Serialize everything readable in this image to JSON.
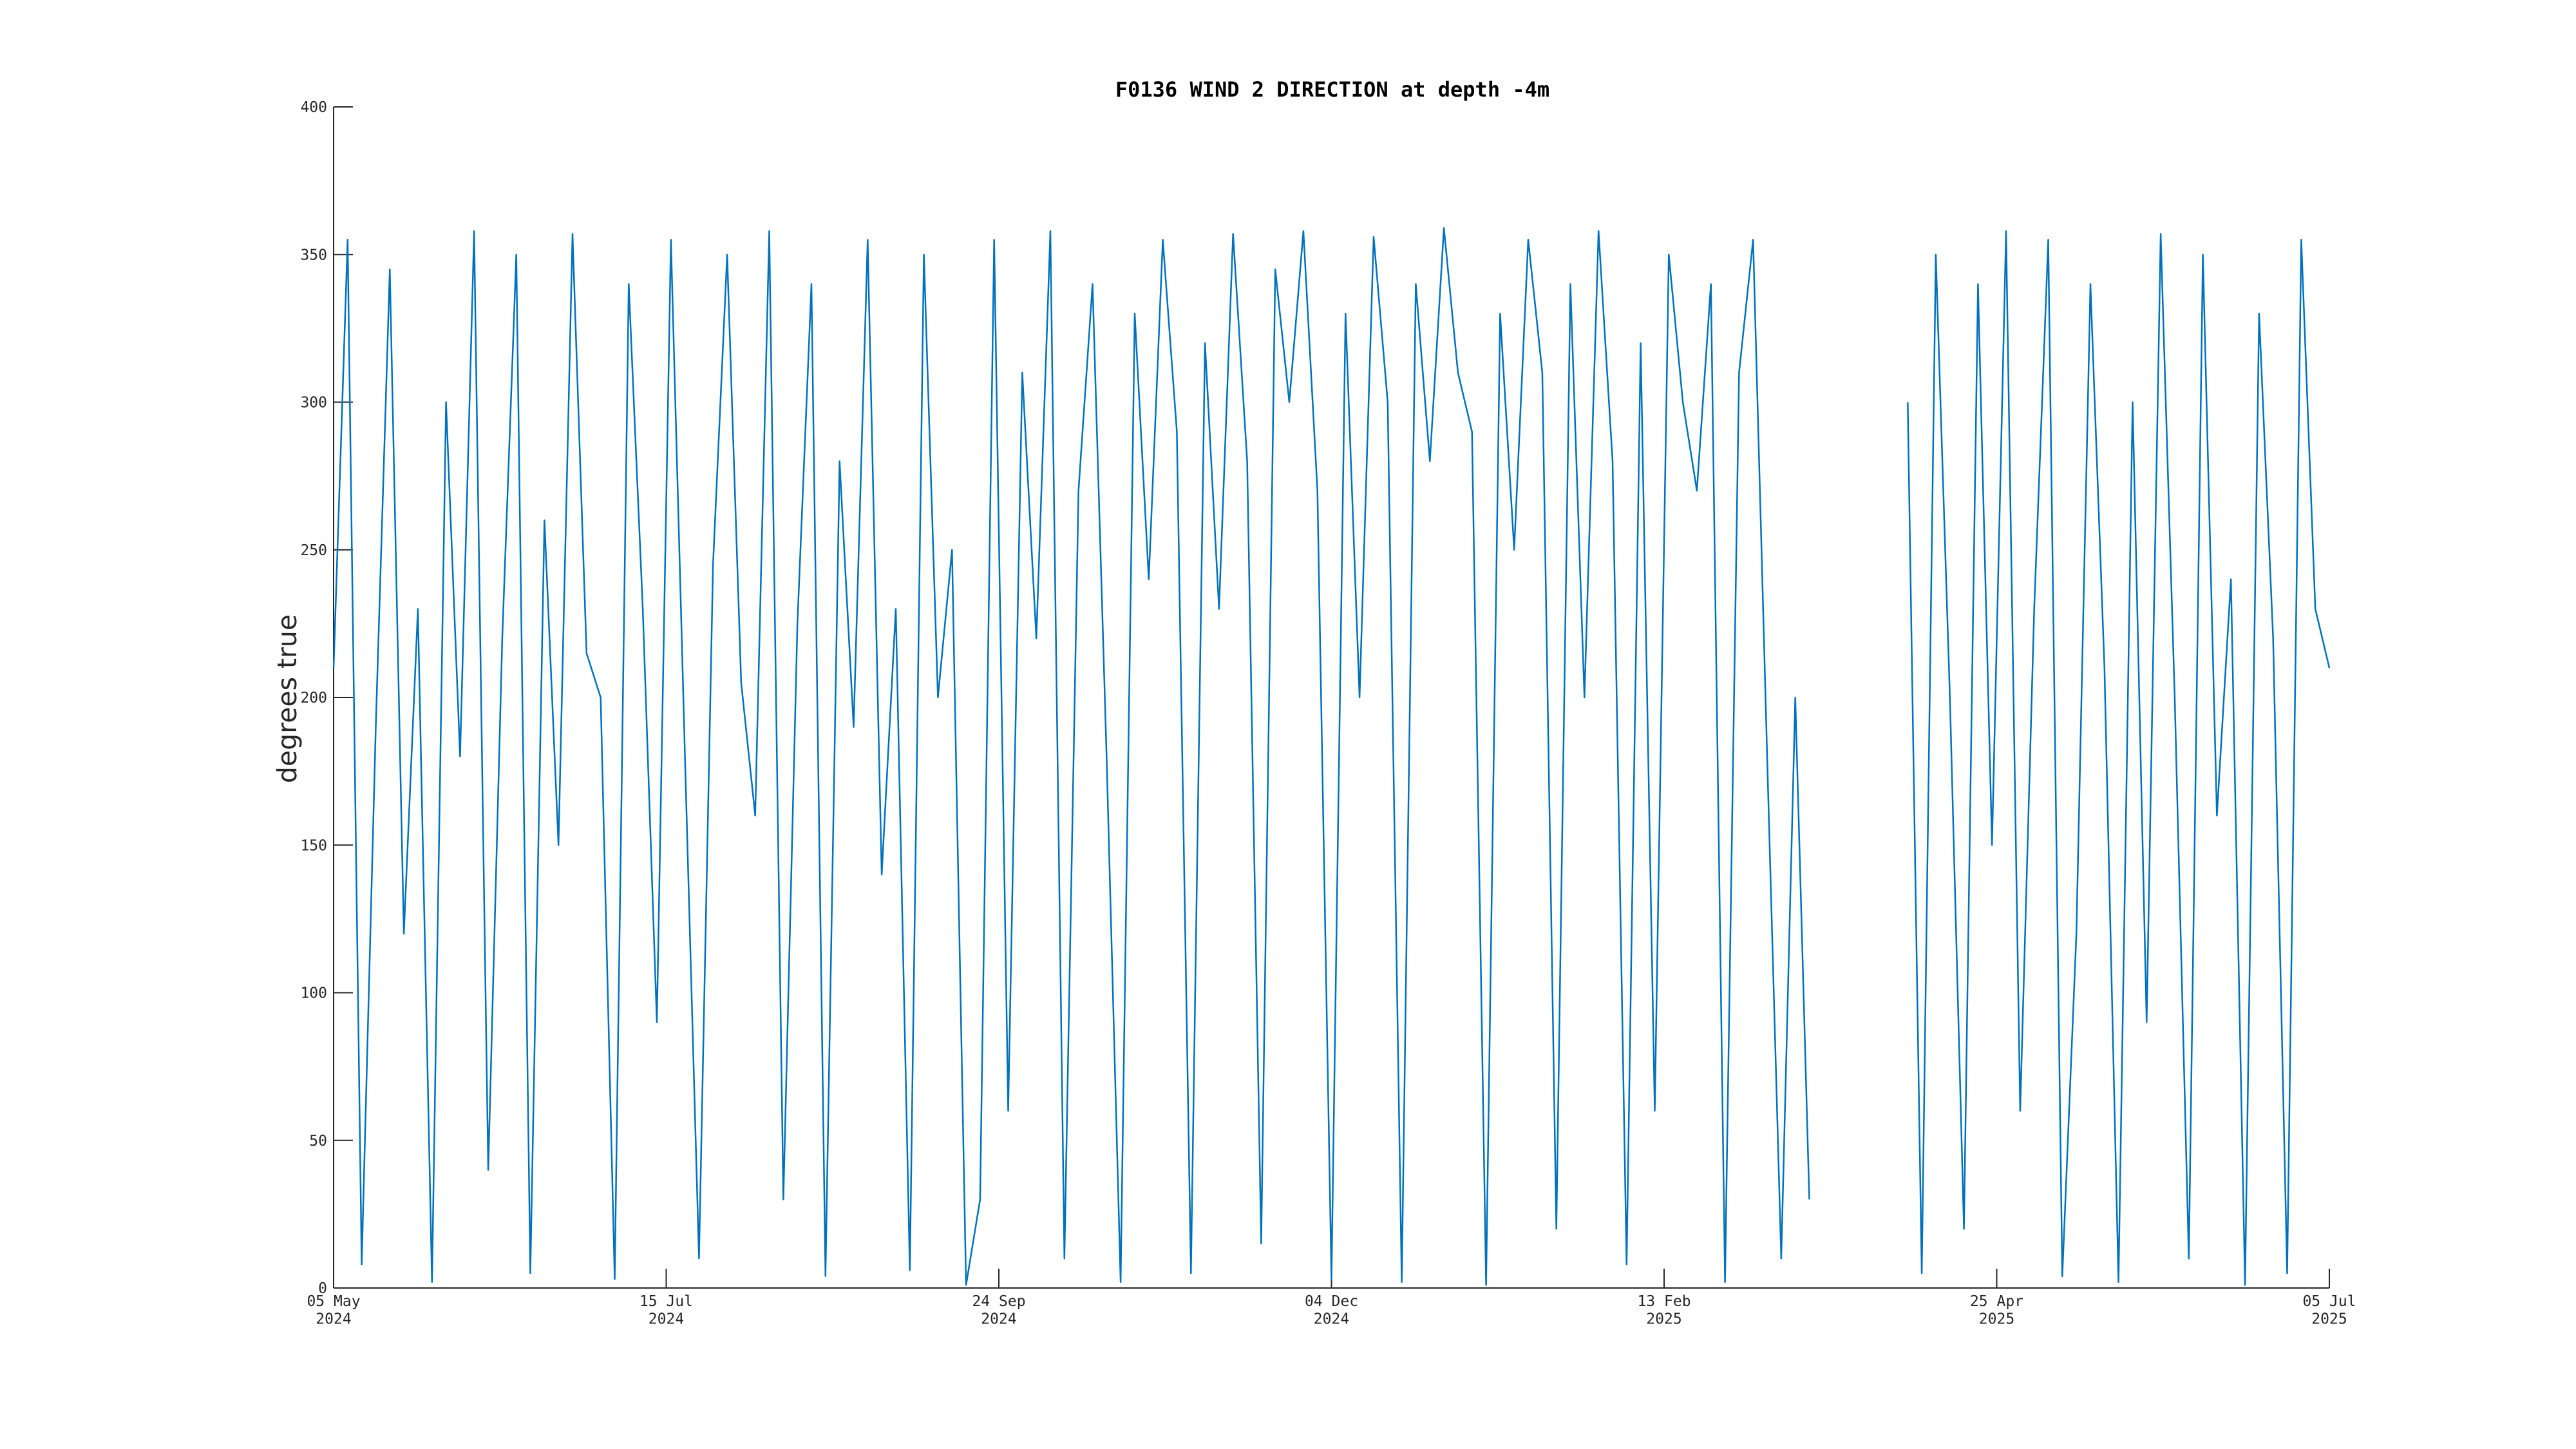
{
  "chart_data": {
    "type": "line",
    "title": "F0136 WIND 2 DIRECTION at depth -4m",
    "y_label": "degrees true",
    "xlim": [
      "2024-05-05",
      "2025-07-05"
    ],
    "xticks": [
      {
        "value": "2024-05-05",
        "label": "05 May\n2024"
      },
      {
        "value": "2024-07-15",
        "label": "15 Jul\n2024"
      },
      {
        "value": "2024-09-24",
        "label": "24 Sep\n2024"
      },
      {
        "value": "2024-12-04",
        "label": "04 Dec\n2024"
      },
      {
        "value": "2025-02-13",
        "label": "13 Feb\n2025"
      },
      {
        "value": "2025-04-25",
        "label": "25 Apr\n2025"
      },
      {
        "value": "2025-07-05",
        "label": "05 Jul\n2025"
      }
    ],
    "ylim": [
      0,
      400
    ],
    "yticks": [
      0,
      50,
      100,
      150,
      200,
      250,
      300,
      350,
      400
    ],
    "grid": false,
    "x": [
      "2024-05-05",
      "2024-05-08",
      "2024-05-11",
      "2024-05-14",
      "2024-05-17",
      "2024-05-20",
      "2024-05-23",
      "2024-05-26",
      "2024-05-29",
      "2024-06-01",
      "2024-06-04",
      "2024-06-07",
      "2024-06-10",
      "2024-06-13",
      "2024-06-16",
      "2024-06-19",
      "2024-06-22",
      "2024-06-25",
      "2024-06-28",
      "2024-07-01",
      "2024-07-04",
      "2024-07-07",
      "2024-07-10",
      "2024-07-13",
      "2024-07-16",
      "2024-07-19",
      "2024-07-22",
      "2024-07-25",
      "2024-07-28",
      "2024-07-31",
      "2024-08-03",
      "2024-08-06",
      "2024-08-09",
      "2024-08-12",
      "2024-08-15",
      "2024-08-18",
      "2024-08-21",
      "2024-08-24",
      "2024-08-27",
      "2024-08-30",
      "2024-09-02",
      "2024-09-05",
      "2024-09-08",
      "2024-09-11",
      "2024-09-14",
      "2024-09-17",
      "2024-09-20",
      "2024-09-23",
      "2024-09-26",
      "2024-09-29",
      "2024-10-02",
      "2024-10-05",
      "2024-10-08",
      "2024-10-11",
      "2024-10-14",
      "2024-10-17",
      "2024-10-20",
      "2024-10-23",
      "2024-10-26",
      "2024-10-29",
      "2024-11-01",
      "2024-11-04",
      "2024-11-07",
      "2024-11-10",
      "2024-11-13",
      "2024-11-16",
      "2024-11-19",
      "2024-11-22",
      "2024-11-25",
      "2024-11-28",
      "2024-12-01",
      "2024-12-04",
      "2024-12-07",
      "2024-12-10",
      "2024-12-13",
      "2024-12-16",
      "2024-12-19",
      "2024-12-22",
      "2024-12-25",
      "2024-12-28",
      "2024-12-31",
      "2025-01-03",
      "2025-01-06",
      "2025-01-09",
      "2025-01-12",
      "2025-01-15",
      "2025-01-18",
      "2025-01-21",
      "2025-01-24",
      "2025-01-27",
      "2025-01-30",
      "2025-02-02",
      "2025-02-05",
      "2025-02-08",
      "2025-02-11",
      "2025-02-14",
      "2025-02-17",
      "2025-02-20",
      "2025-02-23",
      "2025-02-26",
      "2025-03-01",
      "2025-03-04",
      "2025-03-07",
      "2025-03-10",
      "2025-03-13",
      "2025-03-16",
      "2025-03-19",
      "2025-03-22",
      "2025-03-25",
      "2025-03-28",
      "2025-03-31",
      "2025-04-03",
      "2025-04-06",
      "2025-04-09",
      "2025-04-12",
      "2025-04-15",
      "2025-04-18",
      "2025-04-21",
      "2025-04-24",
      "2025-04-27",
      "2025-04-30",
      "2025-05-03",
      "2025-05-06",
      "2025-05-09",
      "2025-05-12",
      "2025-05-15",
      "2025-05-18",
      "2025-05-21",
      "2025-05-24",
      "2025-05-27",
      "2025-05-30",
      "2025-06-02",
      "2025-06-05",
      "2025-06-08",
      "2025-06-11",
      "2025-06-14",
      "2025-06-17",
      "2025-06-20",
      "2025-06-23",
      "2025-06-26",
      "2025-06-29",
      "2025-07-02",
      "2025-07-05"
    ],
    "series": [
      {
        "color": "#0072bd",
        "values": [
          210,
          355,
          8,
          190,
          345,
          120,
          230,
          2,
          300,
          180,
          358,
          40,
          220,
          350,
          5,
          260,
          150,
          357,
          215,
          200,
          3,
          340,
          230,
          90,
          355,
          180,
          10,
          245,
          350,
          205,
          160,
          358,
          30,
          225,
          340,
          4,
          280,
          190,
          355,
          140,
          230,
          6,
          350,
          200,
          250,
          1,
          30,
          355,
          60,
          310,
          220,
          358,
          10,
          270,
          340,
          180,
          2,
          330,
          240,
          355,
          290,
          5,
          320,
          230,
          357,
          280,
          15,
          345,
          300,
          358,
          270,
          3,
          330,
          200,
          356,
          300,
          2,
          340,
          280,
          359,
          310,
          290,
          1,
          330,
          250,
          355,
          310,
          20,
          340,
          200,
          358,
          280,
          8,
          320,
          60,
          350,
          300,
          270,
          340,
          2,
          310,
          355,
          180,
          10,
          200,
          30,
          null,
          null,
          null,
          null,
          null,
          null,
          300,
          5,
          350,
          200,
          20,
          340,
          150,
          358,
          60,
          230,
          355,
          4,
          120,
          340,
          210,
          2,
          300,
          90,
          357,
          200,
          10,
          350,
          160,
          240,
          1,
          330,
          220,
          5,
          355,
          230,
          210
        ]
      }
    ]
  }
}
